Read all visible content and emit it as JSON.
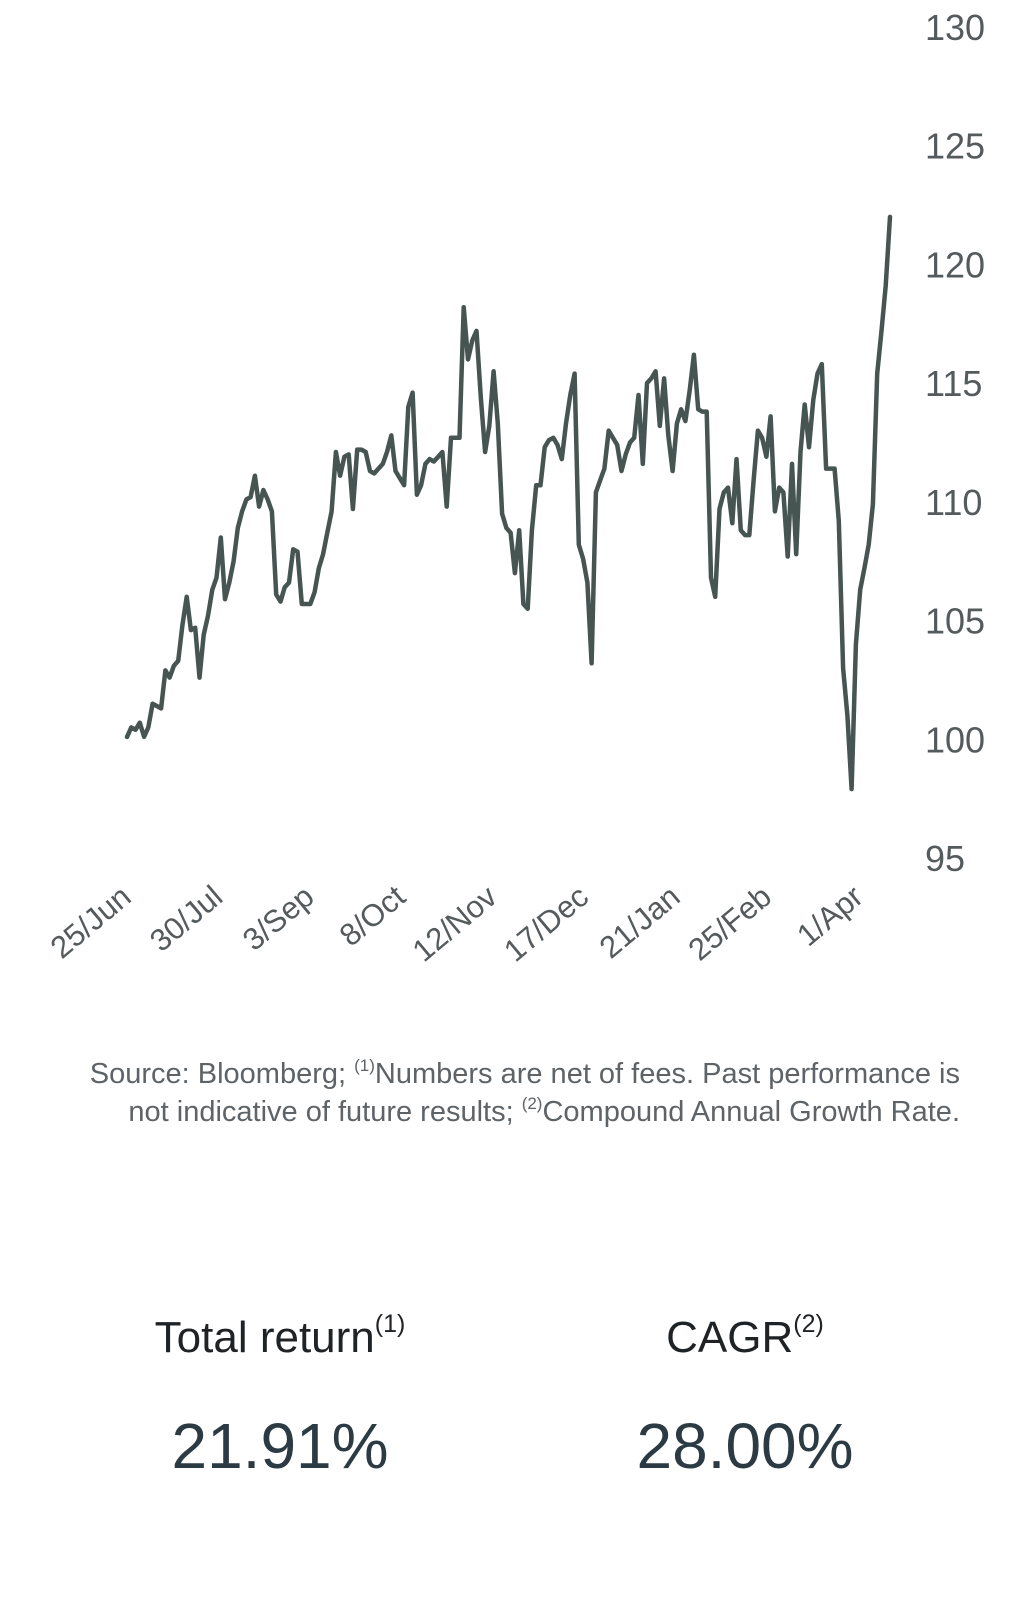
{
  "chart_data": {
    "type": "line",
    "title": "",
    "xlabel": "",
    "ylabel": "",
    "ylim": [
      95,
      130
    ],
    "yticks": [
      95,
      100,
      105,
      110,
      115,
      120,
      125,
      130
    ],
    "x_tick_labels": [
      "25/Jun",
      "30/Jul",
      "3/Sep",
      "8/Oct",
      "12/Nov",
      "17/Dec",
      "21/Jan",
      "25/Feb",
      "1/Apr"
    ],
    "y_axis_position": "right",
    "grid": false,
    "legend": "none",
    "line_color": "#465552",
    "series": [
      {
        "values": [
          100.1,
          100.5,
          100.4,
          100.7,
          100.1,
          100.5,
          101.5,
          101.4,
          101.3,
          102.9,
          102.6,
          103.1,
          103.3,
          104.8,
          106.0,
          104.6,
          104.7,
          102.6,
          104.4,
          105.2,
          106.3,
          106.8,
          108.5,
          105.9,
          106.6,
          107.5,
          108.9,
          109.6,
          110.1,
          110.2,
          111.1,
          109.8,
          110.5,
          110.1,
          109.6,
          106.1,
          105.8,
          106.4,
          106.6,
          108.0,
          107.9,
          105.7,
          105.7,
          105.7,
          106.2,
          107.2,
          107.8,
          108.7,
          109.6,
          112.1,
          111.1,
          111.9,
          112.0,
          109.7,
          112.2,
          112.2,
          112.1,
          111.3,
          111.2,
          111.4,
          111.6,
          112.1,
          112.8,
          111.3,
          111.0,
          110.7,
          114.0,
          114.6,
          110.3,
          110.7,
          111.6,
          111.8,
          111.7,
          111.9,
          112.1,
          109.8,
          112.7,
          112.7,
          112.7,
          118.2,
          116.0,
          116.8,
          117.2,
          114.4,
          112.1,
          113.2,
          115.5,
          113.3,
          109.5,
          108.9,
          108.7,
          107.0,
          108.8,
          105.7,
          105.5,
          108.8,
          110.7,
          110.7,
          112.3,
          112.6,
          112.7,
          112.4,
          111.8,
          113.3,
          114.5,
          115.4,
          108.2,
          107.6,
          106.6,
          103.2,
          110.4,
          110.9,
          111.4,
          113.0,
          112.7,
          112.4,
          111.3,
          112.0,
          112.5,
          112.7,
          114.5,
          111.6,
          115.0,
          115.2,
          115.5,
          113.2,
          115.2,
          112.8,
          111.3,
          113.3,
          113.9,
          113.4,
          114.7,
          116.2,
          113.9,
          113.8,
          113.8,
          106.8,
          106.0,
          109.7,
          110.4,
          110.6,
          109.1,
          111.8,
          108.8,
          108.6,
          108.6,
          110.9,
          113.0,
          112.7,
          111.9,
          113.6,
          109.6,
          110.6,
          110.4,
          107.7,
          111.6,
          107.8,
          112.1,
          114.1,
          112.3,
          114.3,
          115.4,
          115.8,
          111.4,
          111.4,
          111.4,
          109.2,
          103.0,
          101.0,
          97.9,
          104.0,
          106.3,
          107.2,
          108.2,
          109.9,
          115.4,
          117.2,
          119.1,
          122.0
        ]
      }
    ]
  },
  "source_note": {
    "prefix": "Source: Bloomberg; ",
    "sup1": "(1)",
    "mid": "Numbers are net of fees. Past performance is not indicative of future results; ",
    "sup2": "(2)",
    "suffix": "Compound Annual Growth Rate."
  },
  "stats": [
    {
      "label": "Total return",
      "sup": "(1)",
      "value": "21.91%"
    },
    {
      "label": "CAGR",
      "sup": "(2)",
      "value": "28.00%"
    }
  ]
}
